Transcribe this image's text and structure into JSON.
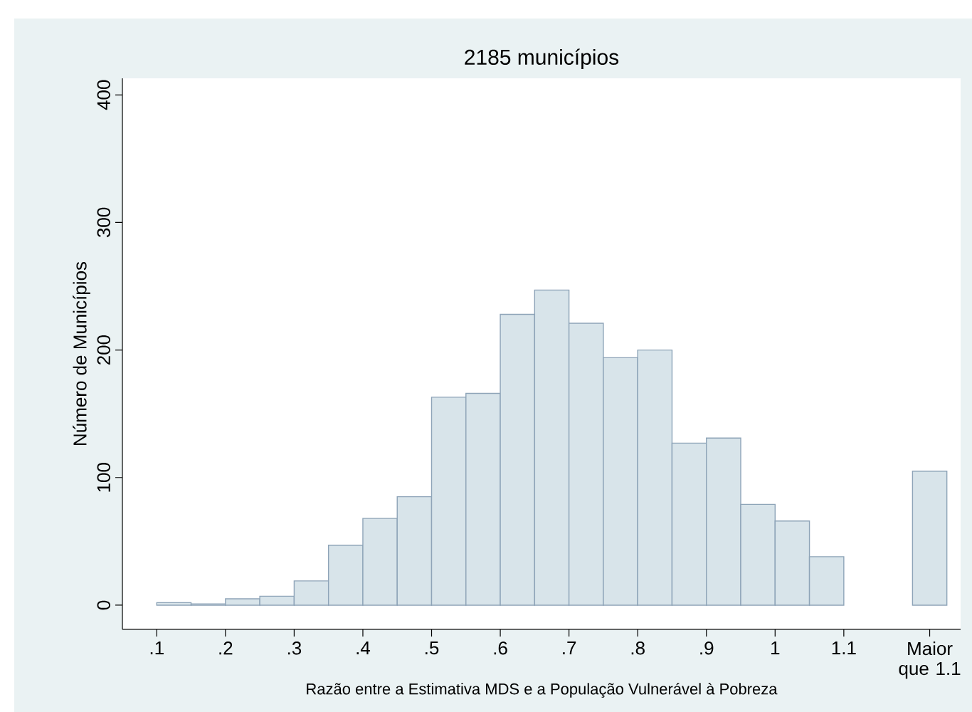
{
  "chart_data": {
    "type": "histogram",
    "title": "2185 municípios",
    "xlabel": "Razão entre a Estimativa MDS e a População Vulnerável à Pobreza",
    "ylabel": "Número de Municípios",
    "bins": [
      0.1,
      0.15,
      0.2,
      0.25,
      0.3,
      0.35,
      0.4,
      0.45,
      0.5,
      0.55,
      0.6,
      0.65,
      0.7,
      0.75,
      0.8,
      0.85,
      0.9,
      0.95,
      1.0,
      1.05,
      1.1,
      1.15,
      1.2,
      1.25
    ],
    "values": [
      2,
      1,
      5,
      7,
      19,
      47,
      68,
      85,
      163,
      166,
      228,
      247,
      221,
      194,
      200,
      127,
      131,
      79,
      66,
      38,
      null,
      null,
      105
    ],
    "color": "#d8e4ea",
    "xlim": [
      0.05,
      1.27
    ],
    "ylim": [
      -19,
      413
    ],
    "xticks": [
      {
        "value": 0.1,
        "label": ".1"
      },
      {
        "value": 0.2,
        "label": ".2"
      },
      {
        "value": 0.3,
        "label": ".3"
      },
      {
        "value": 0.4,
        "label": ".4"
      },
      {
        "value": 0.5,
        "label": ".5"
      },
      {
        "value": 0.6,
        "label": ".6"
      },
      {
        "value": 0.7,
        "label": ".7"
      },
      {
        "value": 0.8,
        "label": ".8"
      },
      {
        "value": 0.9,
        "label": ".9"
      },
      {
        "value": 1.0,
        "label": "1"
      },
      {
        "value": 1.1,
        "label": "1.1"
      },
      {
        "value": 1.225,
        "label": "Maior que 1.1"
      }
    ],
    "yticks": [
      0,
      100,
      200,
      300,
      400
    ],
    "grid": false
  }
}
